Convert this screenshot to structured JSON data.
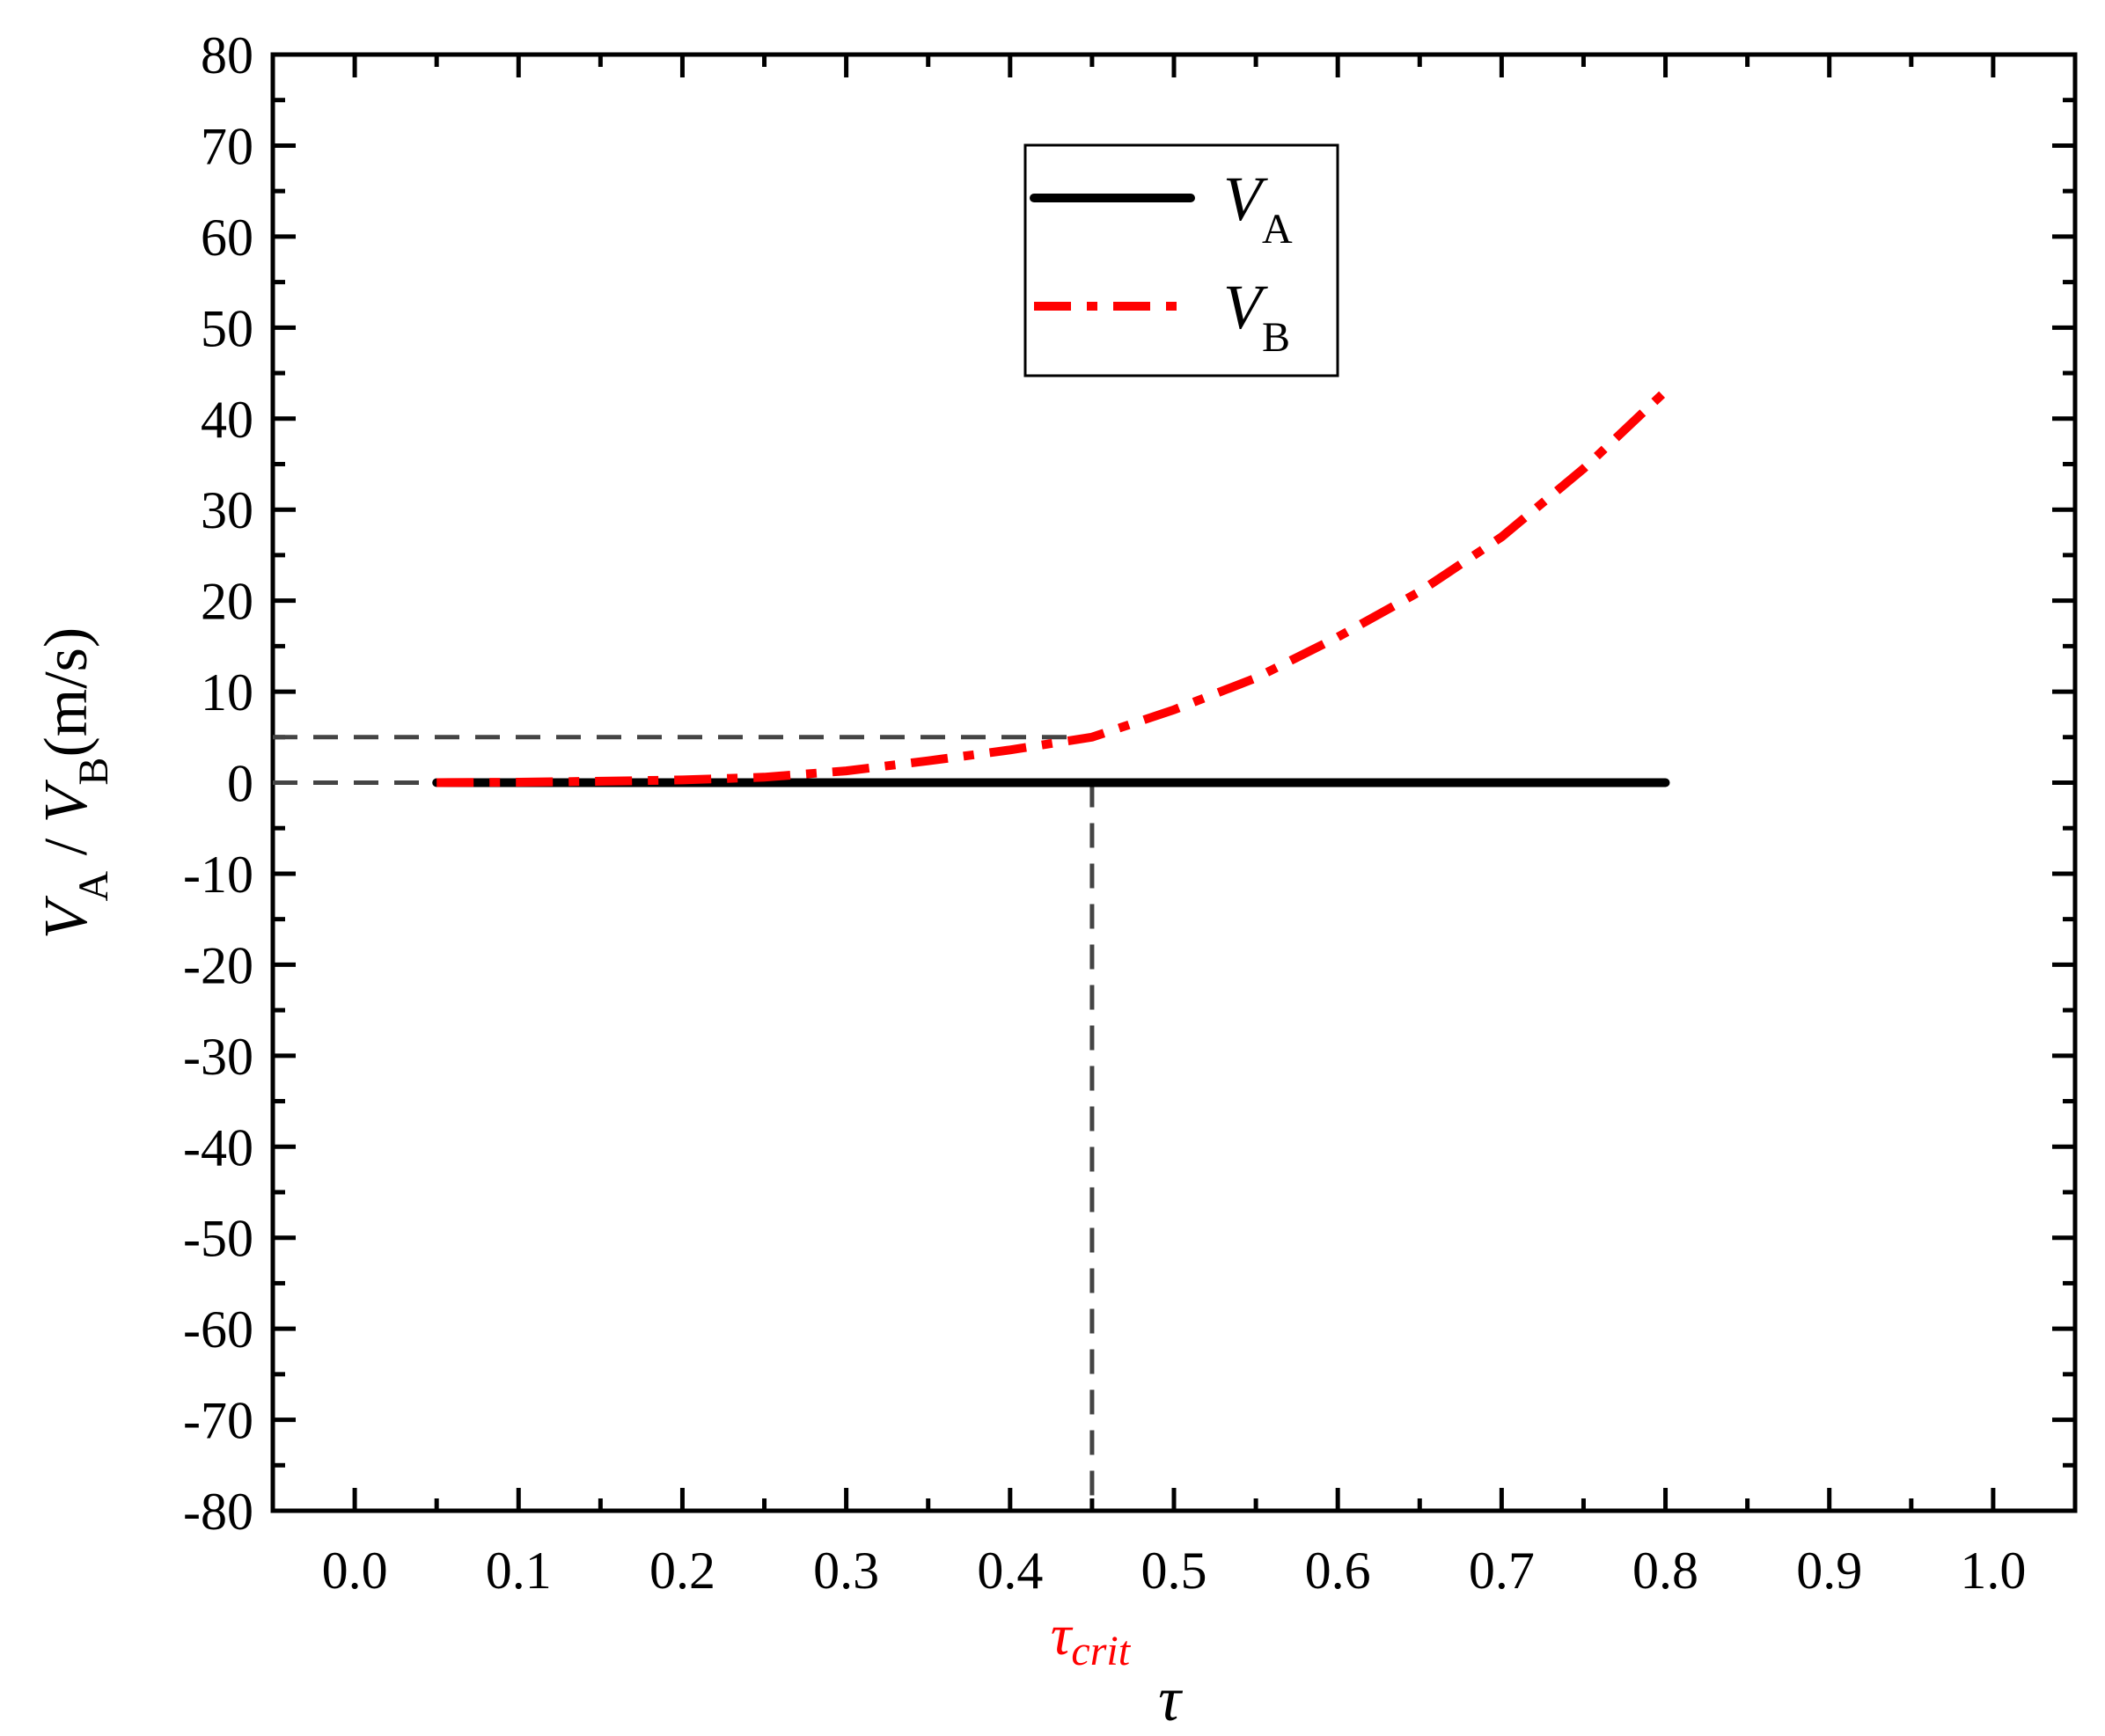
{
  "chart_data": {
    "type": "line",
    "xlabel": "τ",
    "ylabel": {
      "v_a": "V",
      "sub_a": "A",
      "slash": " / ",
      "v_b": "V",
      "sub_b": "B",
      "unit": "(m/s)"
    },
    "xlim": [
      -0.05,
      1.05
    ],
    "ylim": [
      -80,
      80
    ],
    "x_ticks": [
      "0.0",
      "0.1",
      "0.2",
      "0.3",
      "0.4",
      "0.5",
      "0.6",
      "0.7",
      "0.8",
      "0.9",
      "1.0"
    ],
    "y_ticks": [
      "80",
      "70",
      "60",
      "50",
      "40",
      "30",
      "20",
      "10",
      "0",
      "-10",
      "-20",
      "-30",
      "-40",
      "-50",
      "-60",
      "-70",
      "-80"
    ],
    "grid": false,
    "legend_position": "top-center",
    "series": [
      {
        "name": "V_A",
        "label_main": "V",
        "label_sub": "A",
        "color": "#000000",
        "style": "solid",
        "x": [
          0.05,
          0.2,
          0.4,
          0.6,
          0.8
        ],
        "y": [
          0,
          0,
          0,
          0,
          0
        ]
      },
      {
        "name": "V_B",
        "label_main": "V",
        "label_sub": "B",
        "color": "#ff0000",
        "style": "dash-dot",
        "x": [
          0.05,
          0.1,
          0.15,
          0.2,
          0.25,
          0.3,
          0.35,
          0.4,
          0.45,
          0.5,
          0.55,
          0.6,
          0.65,
          0.7,
          0.75,
          0.8
        ],
        "y": [
          0,
          0.05,
          0.15,
          0.3,
          0.6,
          1.3,
          2.4,
          3.6,
          5.0,
          8.0,
          11.5,
          16.0,
          21.0,
          27.0,
          34.5,
          43.0
        ]
      }
    ],
    "critical_point": {
      "label_main": "τ",
      "label_sub": "crit",
      "x": 0.45,
      "y": 5,
      "color": "#ff0000"
    }
  }
}
